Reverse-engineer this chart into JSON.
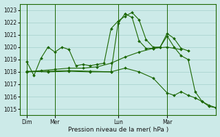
{
  "xlabel": "Pression niveau de la mer( hPa )",
  "bg_color": "#cceae8",
  "grid_color": "#aad4d0",
  "line_color": "#1a6600",
  "ylim": [
    1014.5,
    1023.5
  ],
  "yticks": [
    1015,
    1016,
    1017,
    1018,
    1019,
    1020,
    1021,
    1022,
    1023
  ],
  "xlim": [
    0,
    28
  ],
  "xtick_labels": [
    "Dim",
    "Mer",
    "Lun",
    "Mar"
  ],
  "xtick_positions": [
    1,
    5,
    14,
    21
  ],
  "vlines": [
    1,
    5,
    14,
    21
  ],
  "series": [
    {
      "x": [
        1,
        2,
        3,
        4,
        5,
        6,
        7,
        8,
        9,
        10,
        11,
        12,
        13,
        14,
        15,
        16,
        17,
        18,
        19,
        20,
        21,
        22,
        23,
        24
      ],
      "y": [
        1018.8,
        1017.7,
        1019.1,
        1020.0,
        1019.6,
        1020.0,
        1019.8,
        1018.5,
        1018.6,
        1018.5,
        1018.6,
        1018.7,
        1021.5,
        1022.1,
        1022.5,
        1022.8,
        1022.2,
        1020.6,
        1020.0,
        1020.0,
        1021.1,
        1020.7,
        1019.9,
        1019.7
      ]
    },
    {
      "x": [
        1,
        3,
        5,
        7,
        9,
        11,
        13,
        15,
        17,
        19,
        21,
        23
      ],
      "y": [
        1018.0,
        1018.1,
        1018.2,
        1018.3,
        1018.3,
        1018.4,
        1018.7,
        1019.2,
        1019.6,
        1019.9,
        1020.0,
        1019.8
      ]
    },
    {
      "x": [
        1,
        4,
        7,
        10,
        13,
        14,
        15,
        16,
        17,
        18,
        19,
        20,
        21,
        22,
        23,
        24,
        25,
        26,
        27,
        28
      ],
      "y": [
        1018.0,
        1018.05,
        1018.1,
        1018.05,
        1018.0,
        1021.9,
        1022.7,
        1022.4,
        1020.5,
        1019.9,
        1019.9,
        1020.0,
        1020.9,
        1020.0,
        1019.3,
        1019.0,
        1016.4,
        1015.6,
        1015.2,
        1015.1
      ]
    },
    {
      "x": [
        1,
        4,
        7,
        10,
        13,
        15,
        17,
        19,
        21,
        22,
        23,
        24,
        25,
        26,
        27,
        28
      ],
      "y": [
        1018.05,
        1018.0,
        1018.05,
        1018.0,
        1018.0,
        1018.3,
        1018.0,
        1017.5,
        1016.3,
        1016.1,
        1016.4,
        1016.1,
        1015.9,
        1015.6,
        1015.3,
        1015.1
      ]
    }
  ]
}
